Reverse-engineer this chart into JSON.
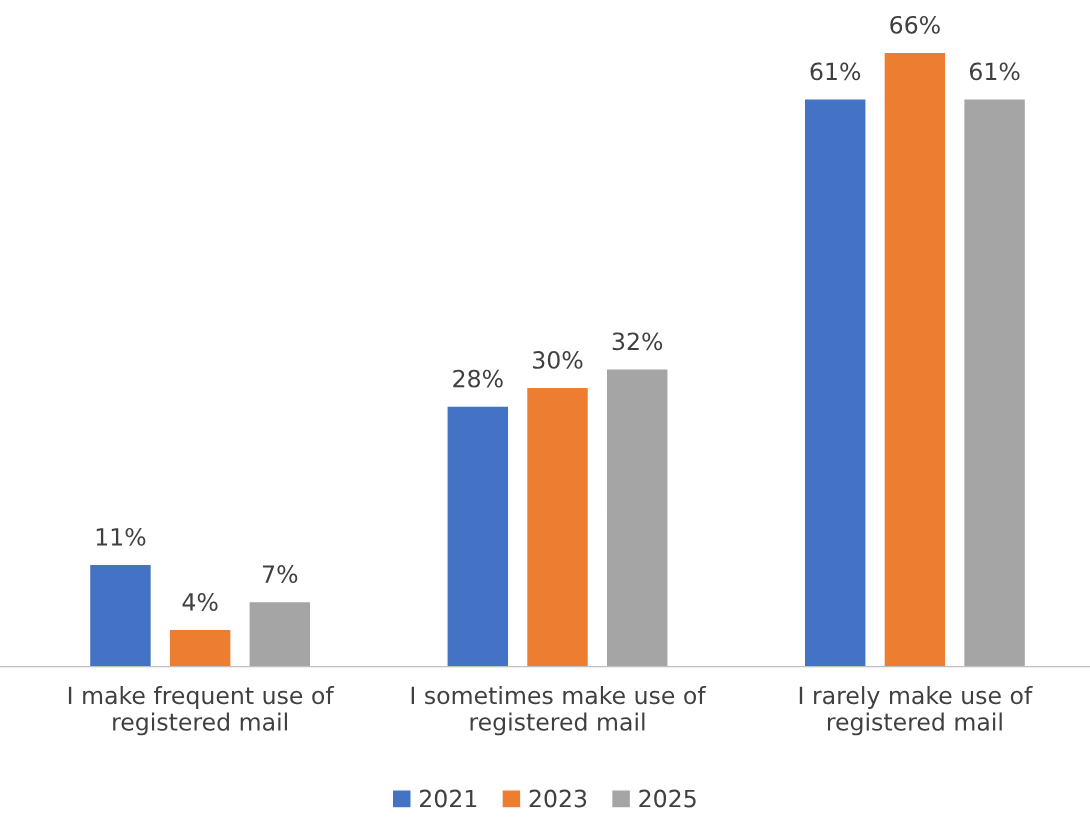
{
  "chart_data": {
    "type": "bar",
    "categories": [
      "I make frequent use of\nregistered mail",
      "I sometimes make use of\nregistered mail",
      "I rarely make use of\nregistered mail"
    ],
    "series": [
      {
        "name": "2021",
        "color": "#4472c4",
        "values": [
          11,
          28,
          61
        ],
        "value_labels": [
          "11%",
          "28%",
          "61%"
        ]
      },
      {
        "name": "2023",
        "color": "#ed7d31",
        "values": [
          4,
          30,
          66
        ],
        "value_labels": [
          "4%",
          "30%",
          "66%"
        ]
      },
      {
        "name": "2025",
        "color": "#a5a5a5",
        "values": [
          7,
          32,
          61
        ],
        "value_labels": [
          "7%",
          "32%",
          "61%"
        ]
      }
    ],
    "grid": false,
    "legend": "bottom"
  }
}
